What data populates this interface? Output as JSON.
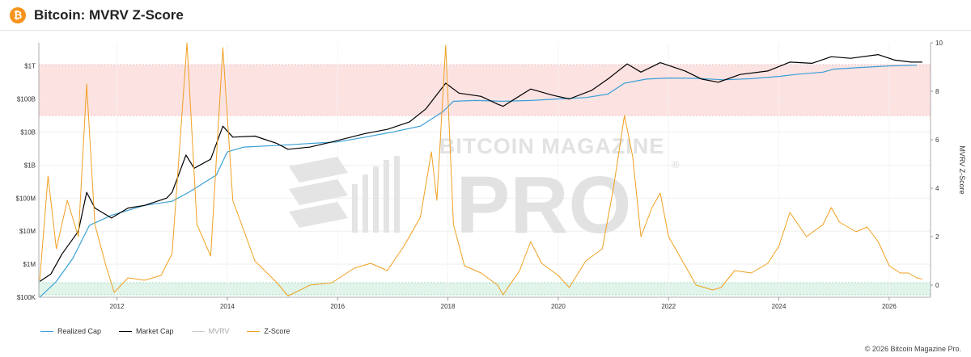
{
  "header": {
    "title": "Bitcoin: MVRV Z-Score",
    "icon": "bitcoin-icon",
    "icon_glyph": "₿"
  },
  "watermark": {
    "line1": "BITCOIN MAGAZINE",
    "line2": "PRO",
    "mark": "®"
  },
  "copyright": "© 2026 Bitcoin Magazine Pro.",
  "colors": {
    "realized_cap": "#3aa0d6",
    "market_cap": "#000000",
    "mvrv": "#c9c9c9",
    "zscore": "#f0a020",
    "top_band": "#fde2e2",
    "bottom_band": "#e0f4ea",
    "accent": "#f7931a"
  },
  "chart_data": {
    "type": "line",
    "x_axis": {
      "type": "date",
      "ticks": [
        "2012",
        "2014",
        "2016",
        "2018",
        "2020",
        "2022",
        "2024",
        "2026"
      ],
      "range": [
        "2010-08",
        "2026-10"
      ]
    },
    "y_axis_left": {
      "scale": "log",
      "ticks": [
        "$100K",
        "$1M",
        "$10M",
        "$100M",
        "$1B",
        "$10B",
        "$100B",
        "$1T"
      ],
      "range": [
        100000,
        5000000000000
      ]
    },
    "y_axis_right": {
      "label": "MVRV Z-Score",
      "ticks": [
        "0",
        "2",
        "4",
        "6",
        "8",
        "10"
      ],
      "range": [
        -0.5,
        10
      ]
    },
    "bands": [
      {
        "name": "top",
        "axis": "right",
        "from": 7,
        "to": 9.1
      },
      {
        "name": "bottom",
        "axis": "right",
        "from": -0.4,
        "to": 0.1
      }
    ],
    "grid": true,
    "legend_position": "bottom-left",
    "series": [
      {
        "name": "Realized Cap",
        "axis": "left",
        "points": [
          [
            2010.6,
            100000
          ],
          [
            2010.9,
            300000
          ],
          [
            2011.2,
            1500000
          ],
          [
            2011.5,
            15000000
          ],
          [
            2011.9,
            30000000
          ],
          [
            2012.5,
            60000000
          ],
          [
            2013.0,
            80000000
          ],
          [
            2013.3,
            150000000
          ],
          [
            2013.8,
            500000000
          ],
          [
            2014.0,
            2500000000
          ],
          [
            2014.3,
            3500000000
          ],
          [
            2015.0,
            4000000000
          ],
          [
            2015.5,
            4500000000
          ],
          [
            2016.0,
            5000000000
          ],
          [
            2016.5,
            7000000000
          ],
          [
            2017.0,
            10000000000
          ],
          [
            2017.5,
            15000000000
          ],
          [
            2017.9,
            40000000000
          ],
          [
            2018.1,
            85000000000
          ],
          [
            2018.5,
            90000000000
          ],
          [
            2019.0,
            85000000000
          ],
          [
            2019.5,
            90000000000
          ],
          [
            2020.0,
            100000000000
          ],
          [
            2020.5,
            110000000000
          ],
          [
            2020.9,
            140000000000
          ],
          [
            2021.2,
            300000000000
          ],
          [
            2021.6,
            400000000000
          ],
          [
            2022.0,
            430000000000
          ],
          [
            2022.5,
            420000000000
          ],
          [
            2023.0,
            380000000000
          ],
          [
            2023.5,
            410000000000
          ],
          [
            2024.0,
            480000000000
          ],
          [
            2024.3,
            550000000000
          ],
          [
            2024.8,
            650000000000
          ],
          [
            2025.0,
            800000000000
          ],
          [
            2025.5,
            900000000000
          ],
          [
            2026.0,
            1000000000000
          ],
          [
            2026.5,
            1050000000000
          ]
        ]
      },
      {
        "name": "Market Cap",
        "axis": "left",
        "points": [
          [
            2010.6,
            300000
          ],
          [
            2010.8,
            500000
          ],
          [
            2011.0,
            2000000
          ],
          [
            2011.3,
            10000000
          ],
          [
            2011.45,
            150000000
          ],
          [
            2011.6,
            50000000
          ],
          [
            2011.9,
            25000000
          ],
          [
            2012.2,
            50000000
          ],
          [
            2012.5,
            60000000
          ],
          [
            2012.9,
            100000000
          ],
          [
            2013.0,
            150000000
          ],
          [
            2013.25,
            2000000000
          ],
          [
            2013.4,
            800000000
          ],
          [
            2013.7,
            1500000000
          ],
          [
            2013.92,
            15000000000
          ],
          [
            2014.1,
            7000000000
          ],
          [
            2014.5,
            7500000000
          ],
          [
            2014.9,
            4500000000
          ],
          [
            2015.1,
            3000000000
          ],
          [
            2015.5,
            3500000000
          ],
          [
            2015.9,
            5000000000
          ],
          [
            2016.5,
            9000000000
          ],
          [
            2016.9,
            12000000000
          ],
          [
            2017.3,
            20000000000
          ],
          [
            2017.6,
            50000000000
          ],
          [
            2017.96,
            300000000000
          ],
          [
            2018.2,
            150000000000
          ],
          [
            2018.6,
            120000000000
          ],
          [
            2018.9,
            70000000000
          ],
          [
            2019.0,
            60000000000
          ],
          [
            2019.5,
            200000000000
          ],
          [
            2019.9,
            130000000000
          ],
          [
            2020.2,
            100000000000
          ],
          [
            2020.6,
            180000000000
          ],
          [
            2020.9,
            400000000000
          ],
          [
            2021.25,
            1150000000000
          ],
          [
            2021.5,
            650000000000
          ],
          [
            2021.85,
            1250000000000
          ],
          [
            2022.3,
            700000000000
          ],
          [
            2022.6,
            400000000000
          ],
          [
            2022.9,
            320000000000
          ],
          [
            2023.3,
            550000000000
          ],
          [
            2023.8,
            700000000000
          ],
          [
            2024.2,
            1300000000000
          ],
          [
            2024.6,
            1200000000000
          ],
          [
            2024.95,
            1900000000000
          ],
          [
            2025.3,
            1700000000000
          ],
          [
            2025.8,
            2200000000000
          ],
          [
            2026.1,
            1500000000000
          ],
          [
            2026.4,
            1300000000000
          ],
          [
            2026.6,
            1300000000000
          ]
        ]
      },
      {
        "name": "MVRV",
        "axis": "right",
        "points": []
      },
      {
        "name": "Z-Score",
        "axis": "right",
        "points": [
          [
            2010.6,
            0.2
          ],
          [
            2010.75,
            4.5
          ],
          [
            2010.9,
            1.5
          ],
          [
            2011.1,
            3.5
          ],
          [
            2011.3,
            2.0
          ],
          [
            2011.45,
            8.3
          ],
          [
            2011.6,
            2.5
          ],
          [
            2011.8,
            0.8
          ],
          [
            2011.95,
            -0.3
          ],
          [
            2012.2,
            0.3
          ],
          [
            2012.5,
            0.2
          ],
          [
            2012.8,
            0.4
          ],
          [
            2013.0,
            1.3
          ],
          [
            2013.27,
            10.0
          ],
          [
            2013.45,
            2.5
          ],
          [
            2013.7,
            1.2
          ],
          [
            2013.92,
            9.8
          ],
          [
            2014.1,
            3.5
          ],
          [
            2014.5,
            1.0
          ],
          [
            2014.9,
            0.1
          ],
          [
            2015.1,
            -0.45
          ],
          [
            2015.5,
            0.0
          ],
          [
            2015.9,
            0.1
          ],
          [
            2016.3,
            0.7
          ],
          [
            2016.6,
            0.9
          ],
          [
            2016.9,
            0.6
          ],
          [
            2017.2,
            1.6
          ],
          [
            2017.5,
            2.8
          ],
          [
            2017.7,
            5.5
          ],
          [
            2017.8,
            3.5
          ],
          [
            2017.96,
            9.9
          ],
          [
            2018.1,
            2.5
          ],
          [
            2018.3,
            0.8
          ],
          [
            2018.6,
            0.5
          ],
          [
            2018.9,
            0.0
          ],
          [
            2019.0,
            -0.4
          ],
          [
            2019.3,
            0.6
          ],
          [
            2019.5,
            1.8
          ],
          [
            2019.7,
            0.9
          ],
          [
            2020.0,
            0.4
          ],
          [
            2020.2,
            -0.1
          ],
          [
            2020.5,
            1.0
          ],
          [
            2020.8,
            1.5
          ],
          [
            2021.0,
            4.0
          ],
          [
            2021.2,
            7.0
          ],
          [
            2021.35,
            5.3
          ],
          [
            2021.5,
            2.0
          ],
          [
            2021.7,
            3.2
          ],
          [
            2021.85,
            3.8
          ],
          [
            2022.0,
            2.0
          ],
          [
            2022.3,
            0.8
          ],
          [
            2022.5,
            0.0
          ],
          [
            2022.8,
            -0.2
          ],
          [
            2022.95,
            -0.1
          ],
          [
            2023.2,
            0.6
          ],
          [
            2023.5,
            0.5
          ],
          [
            2023.8,
            0.9
          ],
          [
            2024.0,
            1.6
          ],
          [
            2024.2,
            3.0
          ],
          [
            2024.5,
            2.0
          ],
          [
            2024.8,
            2.5
          ],
          [
            2024.95,
            3.2
          ],
          [
            2025.1,
            2.6
          ],
          [
            2025.4,
            2.2
          ],
          [
            2025.6,
            2.4
          ],
          [
            2025.8,
            1.8
          ],
          [
            2026.0,
            0.8
          ],
          [
            2026.2,
            0.5
          ],
          [
            2026.35,
            0.5
          ],
          [
            2026.5,
            0.3
          ],
          [
            2026.6,
            0.25
          ]
        ]
      }
    ]
  }
}
